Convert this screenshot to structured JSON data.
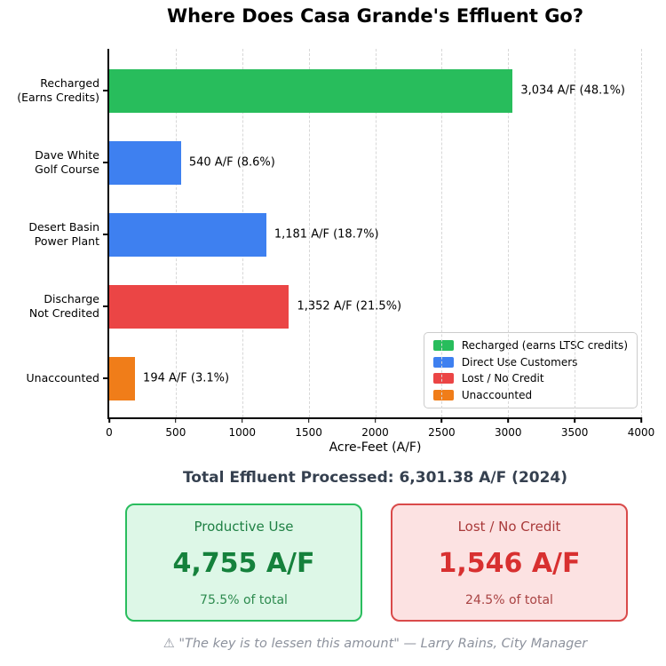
{
  "title": "Where Does Casa Grande's Effluent Go?",
  "subtitle": "Total Effluent Processed: 6,301.38 A/F (2024)",
  "chart_data": {
    "type": "bar",
    "orientation": "horizontal",
    "title": "Where Does Casa Grande's Effluent Go?",
    "xlabel": "Acre-Feet (A/F)",
    "xlim": [
      0,
      4000
    ],
    "xticks": [
      0,
      500,
      1000,
      1500,
      2000,
      2500,
      3000,
      3500,
      4000
    ],
    "grid": "vertical dashed",
    "categories": [
      [
        "Recharged",
        "(Earns Credits)"
      ],
      [
        "Dave White",
        "Golf Course"
      ],
      [
        "Desert Basin",
        "Power Plant"
      ],
      [
        "Discharge",
        "Not Credited"
      ],
      [
        "Unaccounted"
      ]
    ],
    "values": [
      3034,
      540,
      1181,
      1352,
      194
    ],
    "bar_labels": [
      "3,034 A/F (48.1%)",
      "540 A/F (8.6%)",
      "1,181 A/F (18.7%)",
      "1,352 A/F (21.5%)",
      "194 A/F (3.1%)"
    ],
    "bar_colors": [
      "#28bd5c",
      "#3e80f0",
      "#3e80f0",
      "#eb4545",
      "#f07d19"
    ],
    "legend": {
      "position": "lower right",
      "items": [
        {
          "label": "Recharged (earns LTSC credits)",
          "color": "#28bd5c"
        },
        {
          "label": "Direct Use Customers",
          "color": "#3e80f0"
        },
        {
          "label": "Lost / No Credit",
          "color": "#eb4545"
        },
        {
          "label": "Unaccounted",
          "color": "#f07d19"
        }
      ]
    }
  },
  "cards": {
    "productive": {
      "title": "Productive Use",
      "value": "4,755 A/F",
      "percent": "75.5% of total",
      "bg": "#ddf7e7",
      "border": "#2abd5e"
    },
    "lost": {
      "title": "Lost / No Credit",
      "value": "1,546 A/F",
      "percent": "24.5% of total",
      "bg": "#fce2e2",
      "border": "#d94a4a"
    }
  },
  "footer": {
    "icon": "⚠",
    "quote": "\"The key is to lessen this amount\" — Larry Rains, City Manager"
  }
}
